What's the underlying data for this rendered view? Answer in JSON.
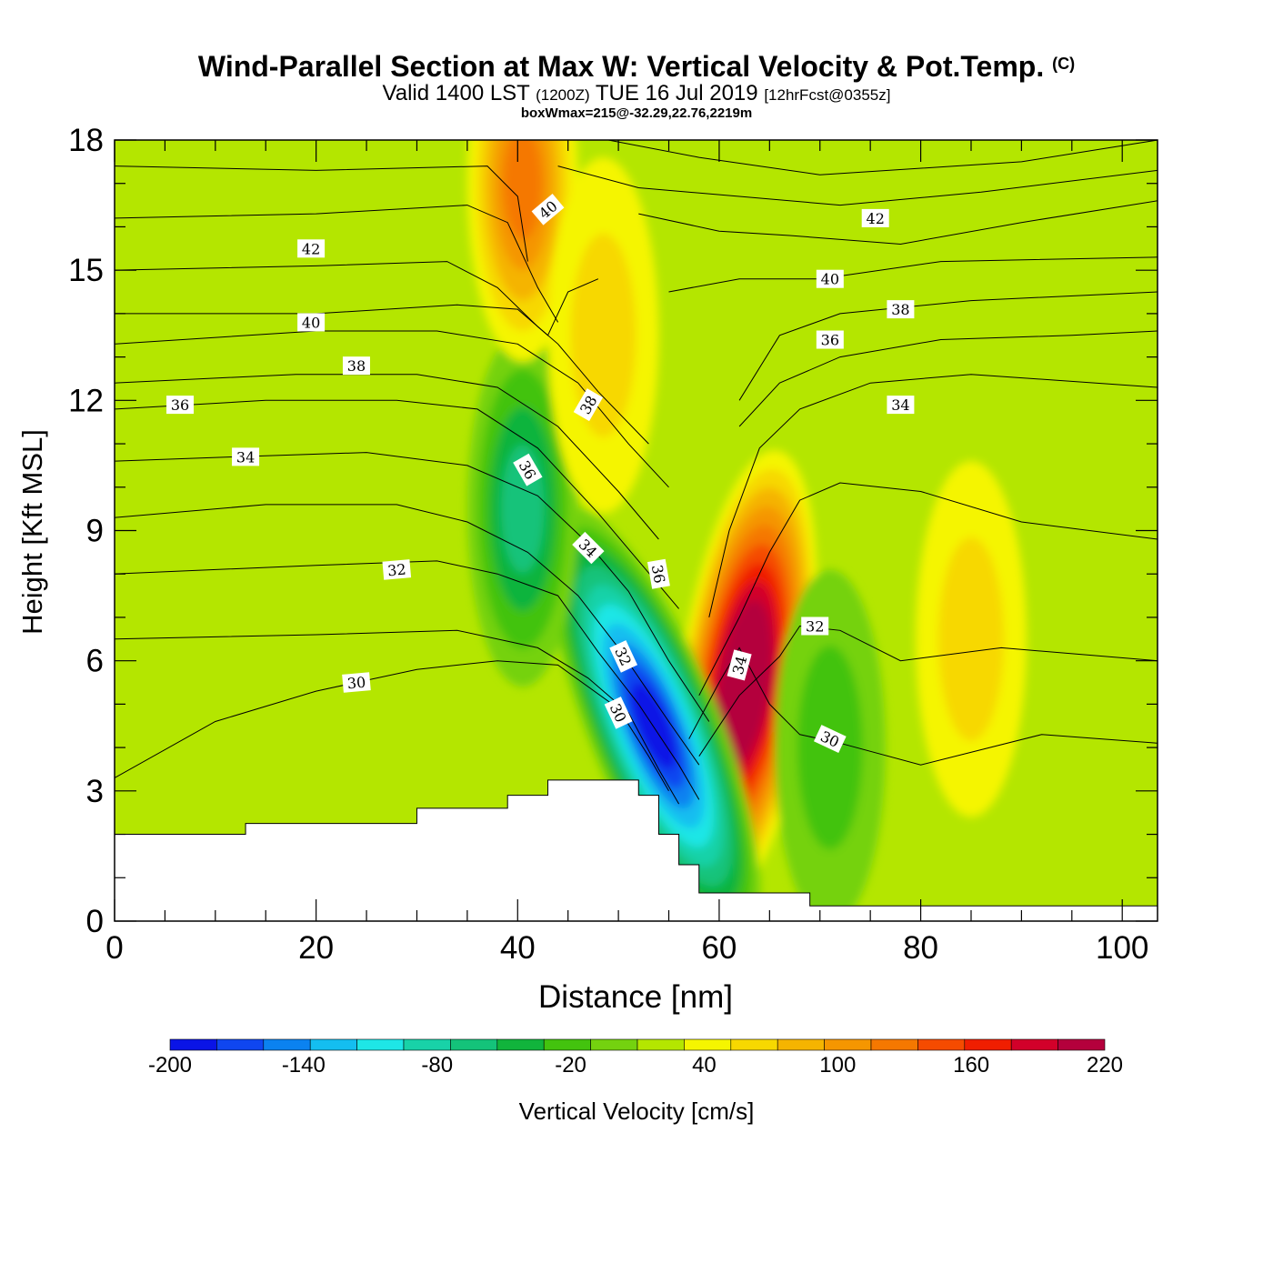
{
  "title": {
    "main": "Wind-Parallel Section at Max W: Vertical Velocity & Pot.Temp.",
    "copyright": "(C)",
    "valid_prefix": "Valid 1400 LST",
    "valid_utc": "(1200Z)",
    "valid_date": "TUE 16 Jul 2019",
    "forecast": "[12hrFcst@0355z]",
    "boxwmax": "boxWmax=215@-32.29,22.76,2219m"
  },
  "chart_data": {
    "type": "contour",
    "xlabel": "Distance [nm]",
    "ylabel": "Height [Kft MSL]",
    "xlim": [
      0,
      103.5
    ],
    "ylim": [
      0,
      18
    ],
    "x_ticks": [
      "0",
      "20",
      "40",
      "60",
      "80",
      "100"
    ],
    "y_ticks": [
      "0",
      "3",
      "6",
      "9",
      "12",
      "15",
      "18"
    ],
    "filled_field": "Vertical Velocity [cm/s]",
    "colorbar": {
      "title": "Vertical Velocity [cm/s]",
      "range": [
        -200,
        220
      ],
      "step": 20,
      "tick_labels": [
        "-200",
        "-140",
        "-80",
        "-20",
        "40",
        "100",
        "160",
        "220"
      ],
      "colors": [
        "#0a14e6",
        "#0f46f0",
        "#0b82f0",
        "#14bef0",
        "#1ee6e6",
        "#18d2a8",
        "#14c37a",
        "#11b43c",
        "#43c30e",
        "#74d20f",
        "#b4e600",
        "#f5f500",
        "#f7d800",
        "#f5b400",
        "#f59600",
        "#f57800",
        "#f54b00",
        "#f01e00",
        "#d2002a",
        "#b4003c"
      ]
    },
    "features": [
      {
        "kind": "updraft_max",
        "x": 62.5,
        "y": 5.5,
        "value": 215
      },
      {
        "kind": "downdraft_min",
        "x": 53.5,
        "y": 4.5,
        "value": -200
      },
      {
        "kind": "downdraft",
        "x": 40.5,
        "y": 9.5,
        "value": -80
      },
      {
        "kind": "updraft",
        "x": 40.5,
        "y": 17,
        "value": 100
      },
      {
        "kind": "updraft",
        "x": 48.5,
        "y": 13.5,
        "value": 40
      },
      {
        "kind": "updraft",
        "x": 85,
        "y": 6.5,
        "value": 40
      },
      {
        "kind": "downdraft",
        "x": 71,
        "y": 4,
        "value": -40
      }
    ],
    "terrain_kft": [
      {
        "x": [
          0,
          13
        ],
        "y": 2.0
      },
      {
        "x": [
          13,
          30
        ],
        "y": 2.25
      },
      {
        "x": [
          30,
          39
        ],
        "y": 2.6
      },
      {
        "x": [
          39,
          43
        ],
        "y": 2.9
      },
      {
        "x": [
          43,
          52
        ],
        "y": 3.25
      },
      {
        "x": [
          52,
          54
        ],
        "y": 2.9
      },
      {
        "x": [
          54,
          56
        ],
        "y": 2.0
      },
      {
        "x": [
          56,
          58
        ],
        "y": 1.3
      },
      {
        "x": [
          58,
          69
        ],
        "y": 0.65
      },
      {
        "x": [
          69,
          103.5
        ],
        "y": 0.35
      }
    ],
    "theta_contours": [
      {
        "level": 30,
        "points": [
          [
            0,
            3.3
          ],
          [
            10,
            4.6
          ],
          [
            20,
            5.3
          ],
          [
            30,
            5.8
          ],
          [
            38,
            6.0
          ],
          [
            44,
            5.9
          ],
          [
            50,
            4.9
          ],
          [
            53,
            3.8
          ],
          [
            55,
            3.0
          ]
        ]
      },
      {
        "level": 30,
        "points": [
          [
            57,
            4.2
          ],
          [
            60,
            5.5
          ],
          [
            62,
            6.3
          ],
          [
            65,
            5.0
          ],
          [
            68,
            4.3
          ],
          [
            72,
            4.1
          ],
          [
            80,
            3.6
          ],
          [
            92,
            4.3
          ],
          [
            103.5,
            4.1
          ]
        ]
      },
      {
        "level": 32,
        "points": [
          [
            0,
            6.5
          ],
          [
            20,
            6.6
          ],
          [
            34,
            6.7
          ],
          [
            42,
            6.3
          ],
          [
            47,
            5.6
          ],
          [
            51,
            4.8
          ],
          [
            54,
            3.5
          ],
          [
            56,
            2.7
          ]
        ]
      },
      {
        "level": 32,
        "points": [
          [
            58,
            3.8
          ],
          [
            62,
            5.2
          ],
          [
            66,
            6.1
          ],
          [
            68,
            6.8
          ],
          [
            72,
            6.7
          ],
          [
            78,
            6.0
          ],
          [
            88,
            6.3
          ],
          [
            103.5,
            6.0
          ]
        ]
      },
      {
        "level": 32,
        "points": [
          [
            0,
            8.0
          ],
          [
            20,
            8.2
          ],
          [
            32,
            8.3
          ],
          [
            38,
            8.0
          ],
          [
            44,
            7.5
          ],
          [
            48,
            6.2
          ],
          [
            52,
            5.0
          ],
          [
            56,
            3.6
          ],
          [
            58,
            2.8
          ]
        ]
      },
      {
        "level": 34,
        "points": [
          [
            0,
            9.3
          ],
          [
            15,
            9.6
          ],
          [
            28,
            9.6
          ],
          [
            35,
            9.2
          ],
          [
            41,
            8.5
          ],
          [
            46,
            7.5
          ],
          [
            50,
            6.3
          ],
          [
            55,
            4.6
          ],
          [
            58,
            3.6
          ]
        ]
      },
      {
        "level": 34,
        "points": [
          [
            58,
            5.2
          ],
          [
            62,
            7.0
          ],
          [
            65,
            8.5
          ],
          [
            68,
            9.7
          ],
          [
            72,
            10.1
          ],
          [
            80,
            9.9
          ],
          [
            90,
            9.2
          ],
          [
            103.5,
            8.8
          ]
        ]
      },
      {
        "level": 34,
        "points": [
          [
            0,
            10.6
          ],
          [
            12,
            10.7
          ],
          [
            25,
            10.8
          ],
          [
            35,
            10.5
          ],
          [
            42,
            9.8
          ],
          [
            47,
            8.7
          ],
          [
            51,
            7.6
          ],
          [
            55,
            6.0
          ],
          [
            59,
            4.6
          ]
        ]
      },
      {
        "level": 36,
        "points": [
          [
            0,
            11.8
          ],
          [
            15,
            12.0
          ],
          [
            28,
            12.0
          ],
          [
            36,
            11.8
          ],
          [
            42,
            10.9
          ],
          [
            48,
            9.4
          ],
          [
            52,
            8.3
          ],
          [
            56,
            7.2
          ]
        ]
      },
      {
        "level": 36,
        "points": [
          [
            59,
            7.0
          ],
          [
            61,
            9.0
          ],
          [
            64,
            10.9
          ],
          [
            68,
            11.8
          ],
          [
            75,
            12.4
          ],
          [
            85,
            12.6
          ],
          [
            103.5,
            12.3
          ]
        ]
      },
      {
        "level": 38,
        "points": [
          [
            0,
            12.4
          ],
          [
            18,
            12.6
          ],
          [
            30,
            12.6
          ],
          [
            38,
            12.3
          ],
          [
            44,
            11.4
          ],
          [
            50,
            9.9
          ],
          [
            54,
            8.8
          ]
        ]
      },
      {
        "level": 38,
        "points": [
          [
            62,
            11.4
          ],
          [
            66,
            12.4
          ],
          [
            72,
            13.0
          ],
          [
            82,
            13.4
          ],
          [
            95,
            13.5
          ],
          [
            103.5,
            13.6
          ]
        ]
      },
      {
        "level": 40,
        "points": [
          [
            0,
            13.3
          ],
          [
            20,
            13.6
          ],
          [
            32,
            13.6
          ],
          [
            40,
            13.3
          ],
          [
            46,
            12.4
          ],
          [
            51,
            11.0
          ],
          [
            55,
            10.0
          ]
        ]
      },
      {
        "level": 40,
        "points": [
          [
            62,
            12.0
          ],
          [
            66,
            13.5
          ],
          [
            72,
            14.0
          ],
          [
            85,
            14.3
          ],
          [
            103.5,
            14.5
          ]
        ]
      },
      {
        "level": 40,
        "points": [
          [
            0,
            14.0
          ],
          [
            20,
            14.0
          ],
          [
            34,
            14.2
          ],
          [
            40,
            14.1
          ],
          [
            44,
            13.3
          ],
          [
            48,
            12.2
          ],
          [
            53,
            11.0
          ]
        ]
      },
      {
        "level": 40,
        "points": [
          [
            55,
            14.5
          ],
          [
            62,
            14.8
          ],
          [
            70,
            14.8
          ],
          [
            82,
            15.2
          ],
          [
            103.5,
            15.3
          ]
        ]
      },
      {
        "level": 42,
        "points": [
          [
            0,
            15.0
          ],
          [
            20,
            15.1
          ],
          [
            33,
            15.2
          ],
          [
            38,
            14.6
          ],
          [
            42,
            13.7
          ],
          [
            43,
            13.5
          ],
          [
            45,
            14.5
          ],
          [
            48,
            14.8
          ]
        ]
      },
      {
        "level": 42,
        "points": [
          [
            52,
            16.3
          ],
          [
            60,
            15.9
          ],
          [
            67,
            15.8
          ],
          [
            78,
            15.6
          ],
          [
            90,
            16.1
          ],
          [
            103.5,
            16.6
          ]
        ]
      },
      {
        "level": 42,
        "points": [
          [
            0,
            16.2
          ],
          [
            20,
            16.3
          ],
          [
            35,
            16.5
          ],
          [
            39,
            16.1
          ],
          [
            42,
            14.6
          ],
          [
            44,
            13.8
          ]
        ]
      },
      {
        "level": 42,
        "points": [
          [
            44,
            17.4
          ],
          [
            52,
            16.9
          ],
          [
            62,
            16.7
          ],
          [
            72,
            16.5
          ],
          [
            86,
            16.8
          ],
          [
            103.5,
            17.3
          ]
        ]
      },
      {
        "level": 44,
        "points": [
          [
            0,
            17.4
          ],
          [
            20,
            17.3
          ],
          [
            37,
            17.4
          ],
          [
            40,
            16.7
          ],
          [
            41,
            15.2
          ]
        ]
      },
      {
        "level": 44,
        "points": [
          [
            49,
            18.0
          ],
          [
            58,
            17.6
          ],
          [
            70,
            17.2
          ],
          [
            90,
            17.5
          ],
          [
            103.5,
            18.0
          ]
        ]
      }
    ],
    "contour_labels": [
      {
        "text": "42",
        "x": 19.5,
        "y": 15.5,
        "angle": 0
      },
      {
        "text": "40",
        "x": 19.5,
        "y": 13.8,
        "angle": 0
      },
      {
        "text": "38",
        "x": 24,
        "y": 12.8,
        "angle": 0
      },
      {
        "text": "36",
        "x": 6.5,
        "y": 11.9,
        "angle": 0
      },
      {
        "text": "34",
        "x": 13,
        "y": 10.7,
        "angle": 0
      },
      {
        "text": "32",
        "x": 28,
        "y": 8.1,
        "angle": -5
      },
      {
        "text": "30",
        "x": 24,
        "y": 5.5,
        "angle": -5
      },
      {
        "text": "40",
        "x": 43,
        "y": 16.4,
        "angle": -40
      },
      {
        "text": "38",
        "x": 47,
        "y": 11.9,
        "angle": -60
      },
      {
        "text": "36",
        "x": 41,
        "y": 10.4,
        "angle": 60
      },
      {
        "text": "34",
        "x": 47,
        "y": 8.6,
        "angle": 45
      },
      {
        "text": "36",
        "x": 54,
        "y": 8.0,
        "angle": 80
      },
      {
        "text": "32",
        "x": 50.5,
        "y": 6.1,
        "angle": 65
      },
      {
        "text": "30",
        "x": 50,
        "y": 4.8,
        "angle": 65
      },
      {
        "text": "34",
        "x": 62,
        "y": 5.9,
        "angle": -75
      },
      {
        "text": "32",
        "x": 69.5,
        "y": 6.8,
        "angle": 0
      },
      {
        "text": "30",
        "x": 71,
        "y": 4.2,
        "angle": 25
      },
      {
        "text": "42",
        "x": 75.5,
        "y": 16.2,
        "angle": 0
      },
      {
        "text": "40",
        "x": 71,
        "y": 14.8,
        "angle": 0
      },
      {
        "text": "38",
        "x": 78,
        "y": 14.1,
        "angle": 0
      },
      {
        "text": "36",
        "x": 71,
        "y": 13.4,
        "angle": 0
      },
      {
        "text": "34",
        "x": 78,
        "y": 11.9,
        "angle": 0
      }
    ]
  }
}
